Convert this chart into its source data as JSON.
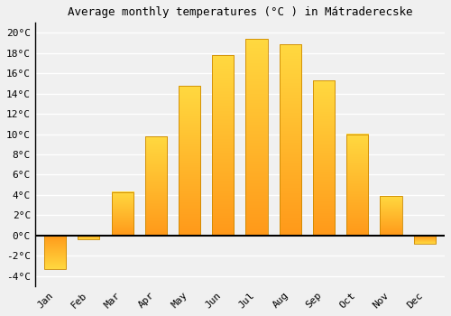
{
  "title": "Average monthly temperatures (°C ) in Mátraderecske",
  "months": [
    "Jan",
    "Feb",
    "Mar",
    "Apr",
    "May",
    "Jun",
    "Jul",
    "Aug",
    "Sep",
    "Oct",
    "Nov",
    "Dec"
  ],
  "values": [
    -3.3,
    -0.4,
    4.3,
    9.8,
    14.8,
    17.8,
    19.4,
    18.9,
    15.3,
    10.0,
    3.9,
    -0.8
  ],
  "bar_color_top": "#FFCC44",
  "bar_color_bottom": "#FF9900",
  "bar_edge_color": "#CC8800",
  "background_color": "#F0F0F0",
  "plot_bg_color": "#F0F0F0",
  "grid_color": "#FFFFFF",
  "ytick_labels": [
    "-4°C",
    "-2°C",
    "0°C",
    "2°C",
    "4°C",
    "6°C",
    "8°C",
    "10°C",
    "12°C",
    "14°C",
    "16°C",
    "18°C",
    "20°C"
  ],
  "ytick_values": [
    -4,
    -2,
    0,
    2,
    4,
    6,
    8,
    10,
    12,
    14,
    16,
    18,
    20
  ],
  "ylim": [
    -5,
    21
  ],
  "title_fontsize": 9,
  "tick_fontsize": 8,
  "bar_width": 0.65
}
